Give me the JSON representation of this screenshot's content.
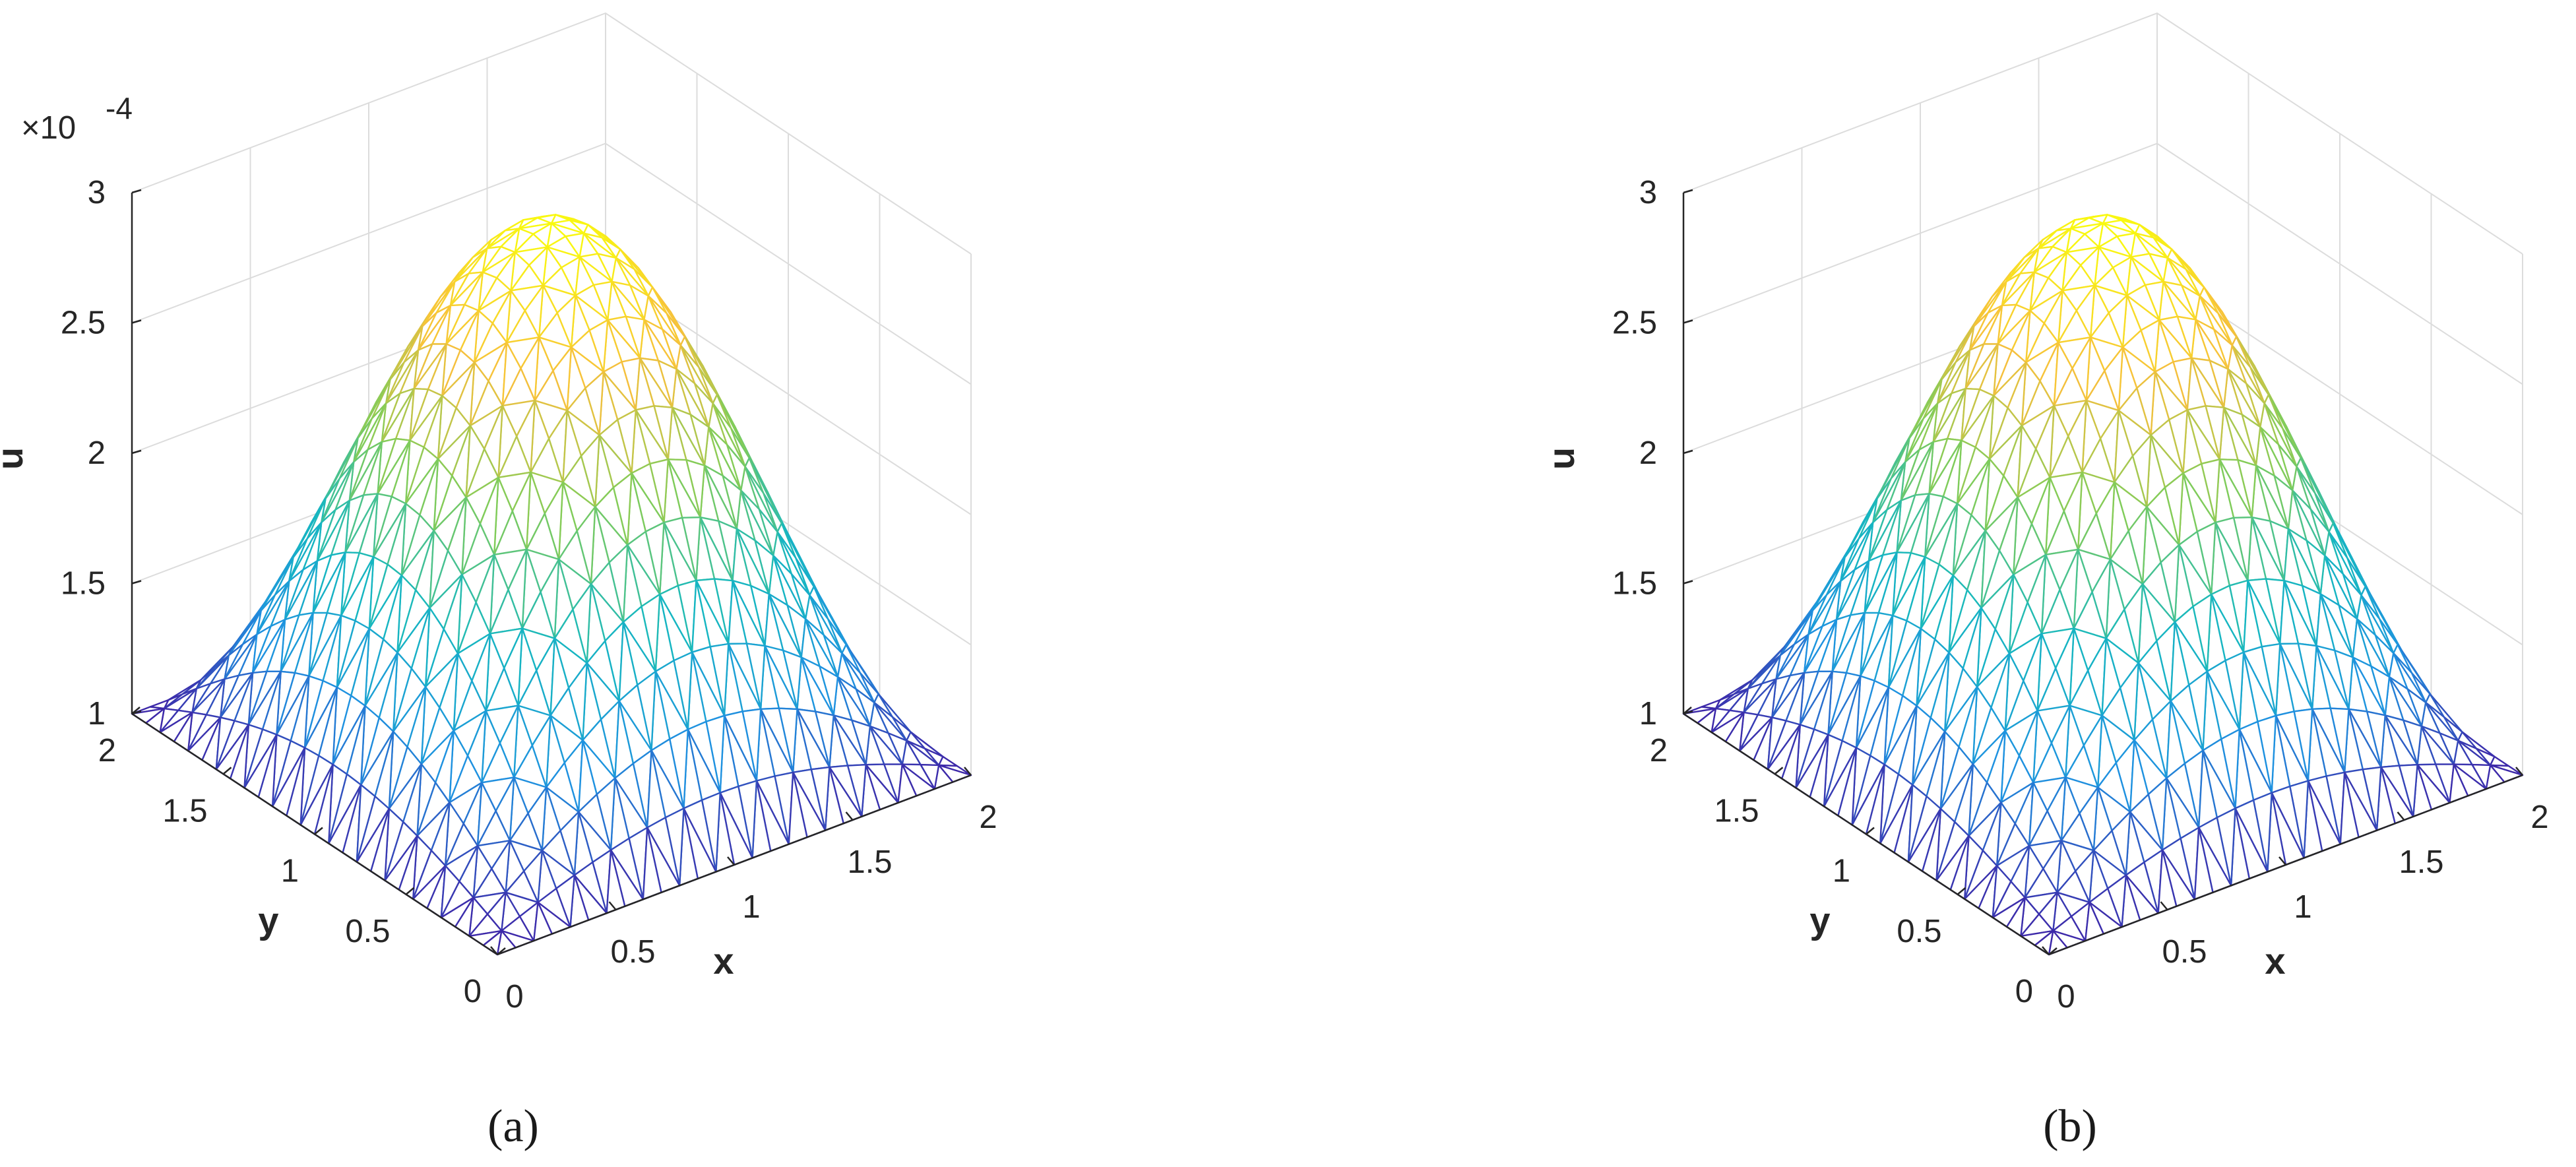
{
  "figure": {
    "subcaptions": [
      "(a)",
      "(b)"
    ]
  },
  "chart_data": [
    {
      "type": "surface",
      "panel": "(a)",
      "function": "u = 0.0001 + 0.0002 * sin(pi*x/2) * sin(pi*y/2)",
      "xlabel": "x",
      "ylabel": "y",
      "zlabel": "u",
      "xlim": [
        0,
        2
      ],
      "ylim": [
        0,
        2
      ],
      "zlim": [
        1,
        3
      ],
      "xticks": [
        "0",
        "0.5",
        "1",
        "1.5",
        "2"
      ],
      "yticks": [
        "0",
        "0.5",
        "1",
        "1.5",
        "2"
      ],
      "zticks": [
        "1",
        "1.5",
        "2",
        "2.5",
        "3"
      ],
      "z_multiplier": "×10",
      "z_exponent": "-4",
      "grid": true,
      "mesh": "triangular",
      "colormap": "parula",
      "colors": [
        "#3e26a8",
        "#1f92e0",
        "#16b8c0",
        "#81cc59",
        "#f7c03c",
        "#f9fb0e"
      ],
      "x": [
        0,
        0.25,
        0.5,
        0.75,
        1,
        1.25,
        1.5,
        1.75,
        2
      ],
      "y": [
        0,
        0.25,
        0.5,
        0.75,
        1,
        1.25,
        1.5,
        1.75,
        2
      ],
      "z_center": 3,
      "z_corners": 1
    },
    {
      "type": "surface",
      "panel": "(b)",
      "function": "u = 0.0001 + 0.0002 * sin(pi*x/2) * sin(pi*y/2)",
      "xlabel": "x",
      "ylabel": "y",
      "zlabel": "u",
      "xlim": [
        0,
        2
      ],
      "ylim": [
        0,
        2
      ],
      "zlim": [
        1,
        3
      ],
      "xticks": [
        "0",
        "0.5",
        "1",
        "1.5",
        "2"
      ],
      "yticks": [
        "0",
        "0.5",
        "1",
        "1.5",
        "2"
      ],
      "zticks": [
        "1",
        "1.5",
        "2",
        "2.5",
        "3"
      ],
      "grid": true,
      "mesh": "triangular",
      "colormap": "parula",
      "colors": [
        "#3e26a8",
        "#1f92e0",
        "#16b8c0",
        "#81cc59",
        "#f7c03c",
        "#f9fb0e"
      ],
      "x": [
        0,
        0.25,
        0.5,
        0.75,
        1,
        1.25,
        1.5,
        1.75,
        2
      ],
      "y": [
        0,
        0.25,
        0.5,
        0.75,
        1,
        1.25,
        1.5,
        1.75,
        2
      ],
      "z_center": 3,
      "z_corners": 1
    }
  ]
}
